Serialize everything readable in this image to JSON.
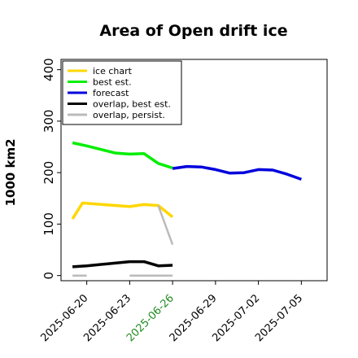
{
  "chart_data": {
    "type": "line",
    "title": "Area of Open drift ice",
    "ylabel": "1000 km2",
    "xlabel": "",
    "ylim": [
      -10,
      420
    ],
    "yticks": [
      0,
      100,
      200,
      300,
      400
    ],
    "xticks": [
      {
        "day": 0,
        "label": "2025-06-20",
        "color": "#000000"
      },
      {
        "day": 3,
        "label": "2025-06-23",
        "color": "#000000"
      },
      {
        "day": 6,
        "label": "2025-06-26",
        "color": "#228B22"
      },
      {
        "day": 9,
        "label": "2025-06-29",
        "color": "#000000"
      },
      {
        "day": 12,
        "label": "2025-07-02",
        "color": "#000000"
      },
      {
        "day": 15,
        "label": "2025-07-05",
        "color": "#000000"
      }
    ],
    "xlim": [
      -1.8,
      16.8
    ],
    "grid": false,
    "legend_position": "top-left",
    "series": [
      {
        "name": "ice chart",
        "color": "#FFD700",
        "points": [
          [
            -1,
            110
          ],
          [
            -0.3,
            141
          ],
          [
            3,
            134
          ],
          [
            4,
            138
          ],
          [
            5,
            136
          ],
          [
            6,
            114
          ]
        ]
      },
      {
        "name": "best est.",
        "color": "#00EE00",
        "points": [
          [
            -1,
            258
          ],
          [
            0,
            252
          ],
          [
            1,
            245
          ],
          [
            2,
            238
          ],
          [
            3,
            236
          ],
          [
            4,
            237
          ],
          [
            5,
            218
          ],
          [
            6,
            209
          ]
        ]
      },
      {
        "name": "forecast",
        "color": "#0000DD",
        "points": [
          [
            6,
            208
          ],
          [
            7,
            212
          ],
          [
            8,
            211
          ],
          [
            9,
            206
          ],
          [
            10,
            199
          ],
          [
            11,
            200
          ],
          [
            12,
            206
          ],
          [
            13,
            205
          ],
          [
            14,
            197
          ],
          [
            15,
            187
          ]
        ]
      },
      {
        "name": "overlap, best est.",
        "color": "#000000",
        "points": [
          [
            -1,
            17
          ],
          [
            0,
            19
          ],
          [
            3,
            27
          ],
          [
            4,
            27
          ],
          [
            5,
            19
          ],
          [
            6,
            20
          ]
        ]
      },
      {
        "name": "overlap, persist.",
        "color": "#BBBBBB",
        "segments": [
          [
            [
              -1,
              0
            ],
            [
              0,
              0
            ]
          ],
          [
            [
              3,
              0
            ],
            [
              6,
              0
            ]
          ],
          [
            [
              5,
              136
            ],
            [
              6,
              60
            ]
          ]
        ]
      }
    ]
  }
}
